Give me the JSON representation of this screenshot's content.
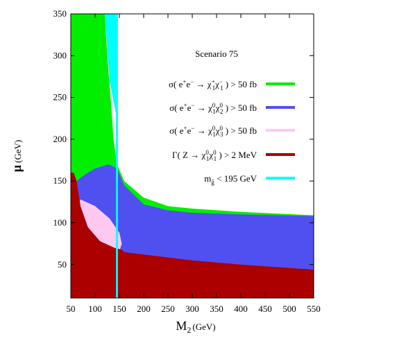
{
  "chart_data": {
    "type": "area",
    "title": "Scenario 75",
    "xlabel": "M",
    "xlabel_sub": "2",
    "xlabel_unit": "(GeV)",
    "ylabel": "μ",
    "ylabel_unit": "(GeV)",
    "xlim": [
      50,
      550
    ],
    "ylim": [
      10,
      350
    ],
    "xticks": [
      50,
      100,
      150,
      200,
      250,
      300,
      350,
      400,
      450,
      500,
      550
    ],
    "yticks": [
      50,
      100,
      150,
      200,
      250,
      300,
      350
    ],
    "legend_position": "top-right",
    "series": [
      {
        "name": "σ( e+e− → χ1+χ1− ) > 50 fb",
        "color": "#00ee00",
        "region": [
          [
            50,
            350
          ],
          [
            120,
            350
          ],
          [
            125,
            300
          ],
          [
            132,
            250
          ],
          [
            138,
            200
          ],
          [
            145,
            170
          ],
          [
            160,
            150
          ],
          [
            200,
            130
          ],
          [
            250,
            120
          ],
          [
            300,
            117
          ],
          [
            400,
            113
          ],
          [
            550,
            109
          ],
          [
            550,
            10
          ],
          [
            50,
            10
          ]
        ]
      },
      {
        "name": "σ( e+e− → χ10χ20 ) > 50 fb",
        "color": "#5050f0",
        "region": [
          [
            62,
            150
          ],
          [
            80,
            158
          ],
          [
            100,
            165
          ],
          [
            128,
            170
          ],
          [
            145,
            165
          ],
          [
            160,
            145
          ],
          [
            200,
            122
          ],
          [
            250,
            115
          ],
          [
            300,
            112
          ],
          [
            400,
            110
          ],
          [
            550,
            108
          ],
          [
            550,
            10
          ],
          [
            50,
            10
          ],
          [
            50,
            130
          ]
        ]
      },
      {
        "name": "σ( e+e− → χ10χ30 ) > 50 fb",
        "color": "#ffc8f0",
        "region": [
          [
            50,
            40
          ],
          [
            55,
            110
          ],
          [
            70,
            128
          ],
          [
            100,
            120
          ],
          [
            130,
            105
          ],
          [
            150,
            88
          ],
          [
            155,
            75
          ],
          [
            148,
            62
          ],
          [
            125,
            50
          ],
          [
            100,
            42
          ],
          [
            75,
            36
          ],
          [
            60,
            35
          ]
        ]
      },
      {
        "name": "Γ( Z → χ10χ10 ) > 2 MeV",
        "color": "#aa0000",
        "region": [
          [
            50,
            160
          ],
          [
            56,
            160
          ],
          [
            62,
            150
          ],
          [
            70,
            120
          ],
          [
            85,
            95
          ],
          [
            110,
            78
          ],
          [
            140,
            70
          ],
          [
            155,
            68
          ],
          [
            160,
            65
          ],
          [
            200,
            62
          ],
          [
            300,
            55
          ],
          [
            400,
            50
          ],
          [
            500,
            46
          ],
          [
            550,
            44
          ],
          [
            550,
            10
          ],
          [
            50,
            10
          ]
        ]
      },
      {
        "name": "mg̃ < 195 GeV",
        "color": "#00ffff",
        "region": [
          [
            120,
            350
          ],
          [
            147,
            350
          ],
          [
            147,
            10
          ],
          [
            143,
            10
          ],
          [
            143,
            230
          ],
          [
            130,
            270
          ]
        ]
      }
    ],
    "legend_items": [
      {
        "prefix": "σ( e",
        "sup1": "+",
        "mid1": "e",
        "sup2": "−",
        "arrow": " → χ",
        "sub1": "1",
        "sup3": "+",
        "mid2": "χ",
        "sub2": "1",
        "sup4": "−",
        "suffix": " ) > 50 fb",
        "color": "#00ee00"
      },
      {
        "prefix": "σ( e",
        "sup1": "+",
        "mid1": "e",
        "sup2": "−",
        "arrow": " → χ",
        "sub1": "1",
        "sup3": "0",
        "mid2": "χ",
        "sub2": "2",
        "sup4": "0",
        "suffix": " ) > 50 fb",
        "color": "#5050f0"
      },
      {
        "prefix": "σ( e",
        "sup1": "+",
        "mid1": "e",
        "sup2": "−",
        "arrow": " → χ",
        "sub1": "1",
        "sup3": "0",
        "mid2": "χ",
        "sub2": "3",
        "sup4": "0",
        "suffix": " ) > 50 fb",
        "color": "#ffc8f0"
      },
      {
        "prefix": "Γ( Z",
        "sup1": "",
        "mid1": "",
        "sup2": "",
        "arrow": " → χ",
        "sub1": "1",
        "sup3": "0",
        "mid2": "χ",
        "sub2": "1",
        "sup4": "0",
        "suffix": " ) > 2 MeV",
        "color": "#aa0000"
      },
      {
        "prefix": "m",
        "sup1": "",
        "mid1": "",
        "sup2": "",
        "arrow": "",
        "sub1": "g̃",
        "sup3": "",
        "mid2": "",
        "sub2": "",
        "sup4": "",
        "suffix": " < 195 GeV",
        "color": "#00ffff"
      }
    ]
  }
}
